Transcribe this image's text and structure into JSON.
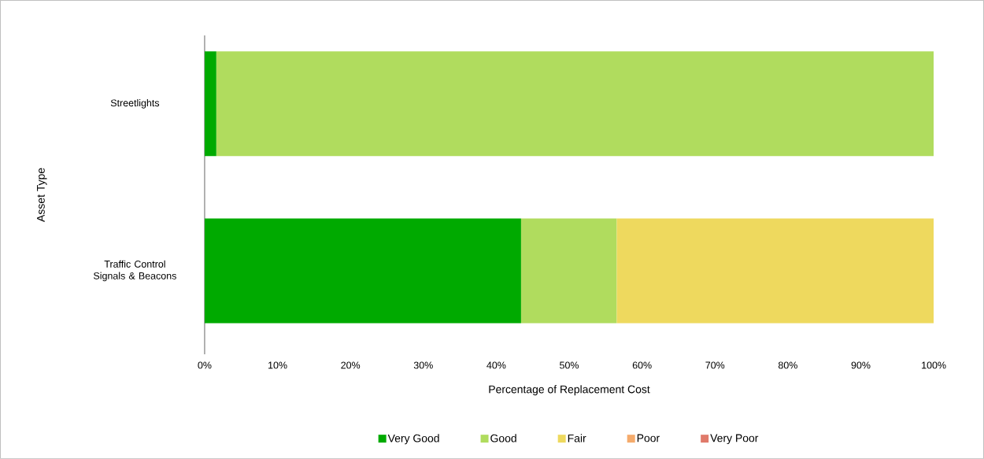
{
  "chart_data": {
    "type": "bar",
    "orientation": "horizontal",
    "stacked": true,
    "xlabel": "Percentage of Replacement Cost",
    "ylabel": "Asset Type",
    "categories": [
      "Streetlights",
      "Traffic Control Signals & Beacons"
    ],
    "series": [
      {
        "name": "Very Good",
        "color": "#00aa00",
        "values": [
          1.6,
          43.4
        ]
      },
      {
        "name": "Good",
        "color": "#b0dc5e",
        "values": [
          98.4,
          13.1
        ]
      },
      {
        "name": "Fair",
        "color": "#eed95e",
        "values": [
          0,
          43.5
        ]
      },
      {
        "name": "Poor",
        "color": "#f5ab6c",
        "values": [
          0,
          0
        ]
      },
      {
        "name": "Very Poor",
        "color": "#e07a6a",
        "values": [
          0,
          0
        ]
      }
    ],
    "xlim": [
      0,
      100
    ],
    "xticks": [
      {
        "value": 0,
        "label": "0%"
      },
      {
        "value": 10,
        "label": "10%"
      },
      {
        "value": 20,
        "label": "20%"
      },
      {
        "value": 30,
        "label": "30%"
      },
      {
        "value": 40,
        "label": "40%"
      },
      {
        "value": 50,
        "label": "50%"
      },
      {
        "value": 60,
        "label": "60%"
      },
      {
        "value": 70,
        "label": "70%"
      },
      {
        "value": 80,
        "label": "80%"
      },
      {
        "value": 90,
        "label": "90%"
      },
      {
        "value": 100,
        "label": "100%"
      }
    ],
    "legend": "bottom"
  }
}
